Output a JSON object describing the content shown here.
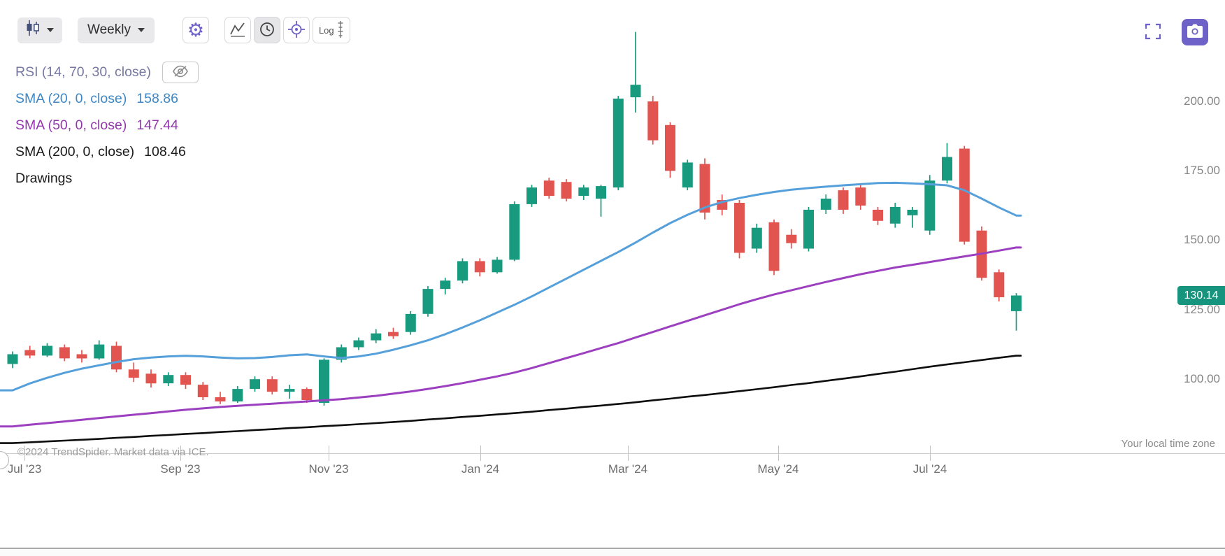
{
  "toolbar": {
    "chart_type_dropdown": {
      "selected": "candlestick"
    },
    "timeframe_dropdown": {
      "value": "Weekly"
    },
    "settings_button": {
      "icon": "gear-icon"
    },
    "indicators_button": {
      "icon": "line-chart-icon"
    },
    "time_button": {
      "icon": "clock-icon",
      "active": true
    },
    "crosshair_button": {
      "icon": "crosshair-icon"
    },
    "log_button": {
      "label": "Log"
    },
    "fullscreen_button": {
      "icon": "fullscreen-icon"
    },
    "camera_button": {
      "icon": "camera-icon"
    }
  },
  "legend": {
    "rsi": {
      "label": "RSI (14, 70, 30, close)",
      "hidden": true
    },
    "sma20": {
      "label": "SMA (20, 0, close)",
      "value": "158.86"
    },
    "sma50": {
      "label": "SMA (50, 0, close)",
      "value": "147.44"
    },
    "sma200": {
      "label": "SMA (200, 0, close)",
      "value": "108.46"
    },
    "drawings": {
      "label": "Drawings"
    }
  },
  "price_axis": {
    "labels": [
      "200.00",
      "175.00",
      "150.00",
      "125.00",
      "100.00"
    ],
    "last_price": "130.14"
  },
  "time_axis": {
    "labels": [
      "Jul '23",
      "Sep '23",
      "Nov '23",
      "Jan '24",
      "Mar '24",
      "May '24",
      "Jul '24"
    ]
  },
  "footer": {
    "copyright": "©2024 TrendSpider. Market data via ICE.",
    "timezone_note": "Your local time zone"
  },
  "colors": {
    "up": "#189a7f",
    "down": "#e25450",
    "sma20_line": "#55a0da",
    "sma20_text": "#3d87c6",
    "sma50_line": "#9c40c0",
    "sma50_text": "#9336ad",
    "sma200_line": "#0d0d0d",
    "sma200_text": "#1a1a1a",
    "rsi_text": "#7678a2",
    "accent": "#6e62c8",
    "last_price_bg": "#17947e"
  },
  "chart_data": {
    "type": "candlestick",
    "timeframe": "Weekly",
    "title": "Weekly candlestick chart with SMA 20/50/200 overlays",
    "price_axis_ticks": [
      200,
      175,
      150,
      125,
      100
    ],
    "last_close": 130.14,
    "x_labels": [
      "Jul '23",
      "Sep '23",
      "Nov '23",
      "Jan '24",
      "Mar '24",
      "May '24",
      "Jul '24"
    ],
    "candles_ohlc": [
      [
        105.5,
        110,
        104,
        109
      ],
      [
        110.5,
        112,
        107.5,
        108.5
      ],
      [
        108.5,
        113,
        108,
        112
      ],
      [
        111.5,
        112.5,
        106.5,
        107.5
      ],
      [
        109,
        110.5,
        106,
        107.5
      ],
      [
        107.5,
        114,
        107,
        112.5
      ],
      [
        112,
        113.5,
        102.5,
        103.5
      ],
      [
        103.5,
        106,
        99,
        100.5
      ],
      [
        102,
        103.5,
        97,
        98.5
      ],
      [
        98.5,
        102.5,
        97.5,
        101.5
      ],
      [
        101.5,
        102.5,
        96.5,
        98
      ],
      [
        98,
        99,
        92.5,
        93.5
      ],
      [
        93.5,
        95.5,
        91,
        92
      ],
      [
        92,
        97.5,
        91.5,
        96.5
      ],
      [
        96.5,
        101,
        95.5,
        100
      ],
      [
        100,
        101,
        94.5,
        95.5
      ],
      [
        95.5,
        98,
        93,
        96.5
      ],
      [
        96.5,
        97,
        91.5,
        92.5
      ],
      [
        91.5,
        107.5,
        90.5,
        107
      ],
      [
        107,
        112.5,
        106,
        111.5
      ],
      [
        111.5,
        115,
        110.5,
        114
      ],
      [
        114,
        118,
        113,
        116.5
      ],
      [
        117,
        118.5,
        114.5,
        115.5
      ],
      [
        117,
        124.5,
        116,
        123.5
      ],
      [
        123.5,
        133.5,
        122.5,
        132.5
      ],
      [
        132.5,
        136.5,
        130.5,
        135.5
      ],
      [
        135.5,
        143.5,
        134.5,
        142.5
      ],
      [
        142.5,
        143.5,
        137,
        138.5
      ],
      [
        138.5,
        144,
        138,
        143
      ],
      [
        143,
        164,
        142.5,
        163
      ],
      [
        163,
        170,
        162,
        169
      ],
      [
        171.5,
        172.5,
        165,
        166
      ],
      [
        171,
        172,
        164,
        165
      ],
      [
        166,
        170,
        164.5,
        169
      ],
      [
        165,
        170,
        158.5,
        169.5
      ],
      [
        169,
        202,
        168,
        201
      ],
      [
        201.5,
        225,
        196,
        206
      ],
      [
        200,
        202,
        184.5,
        186
      ],
      [
        191.5,
        192.5,
        172.5,
        175
      ],
      [
        169,
        179,
        168,
        178
      ],
      [
        177.5,
        179.5,
        157.5,
        160
      ],
      [
        164.5,
        166.5,
        159,
        161
      ],
      [
        163.5,
        164.5,
        143.5,
        145.5
      ],
      [
        147,
        156,
        145.5,
        154.5
      ],
      [
        156.5,
        157.5,
        137.5,
        139
      ],
      [
        152,
        154,
        147,
        149
      ],
      [
        147,
        162,
        146,
        161
      ],
      [
        161,
        166.5,
        159.5,
        165
      ],
      [
        168,
        169,
        159.5,
        161
      ],
      [
        169,
        170.5,
        161,
        162.5
      ],
      [
        161,
        162,
        155.5,
        157
      ],
      [
        156,
        163.5,
        154.5,
        162
      ],
      [
        159,
        162,
        154.5,
        161
      ],
      [
        153.5,
        173.5,
        152,
        171.5
      ],
      [
        171.5,
        185,
        170.5,
        180
      ],
      [
        183,
        184,
        148.5,
        149.5
      ],
      [
        153.5,
        155,
        135.5,
        136.5
      ],
      [
        138.5,
        139.5,
        128,
        129.5
      ],
      [
        124.5,
        131,
        117.5,
        130.14
      ]
    ],
    "overlays": [
      {
        "name": "SMA20",
        "period": 20,
        "current": 158.86,
        "values": [
          96.0,
          98.5,
          100.5,
          102.3,
          103.8,
          105.0,
          106.2,
          107.2,
          107.8,
          108.2,
          108.4,
          108.2,
          107.8,
          107.5,
          107.6,
          108.0,
          108.6,
          108.9,
          108.2,
          107.6,
          108.2,
          109.2,
          110.6,
          112.2,
          114.0,
          116.2,
          118.6,
          121.2,
          124.0,
          126.8,
          129.8,
          133.0,
          136.2,
          139.4,
          142.6,
          145.8,
          149.2,
          152.8,
          156.2,
          159.2,
          161.8,
          163.8,
          165.2,
          166.4,
          167.4,
          168.2,
          168.8,
          169.3,
          169.8,
          170.2,
          170.6,
          170.7,
          170.5,
          170.2,
          169.8,
          168.0,
          165.0,
          161.8,
          158.9
        ]
      },
      {
        "name": "SMA50",
        "period": 50,
        "current": 147.44,
        "values": [
          83.0,
          83.6,
          84.2,
          84.8,
          85.4,
          86.0,
          86.6,
          87.2,
          87.8,
          88.4,
          89.0,
          89.5,
          90.0,
          90.4,
          90.8,
          91.2,
          91.6,
          92.0,
          92.4,
          92.8,
          93.4,
          94.0,
          94.8,
          95.6,
          96.5,
          97.5,
          98.6,
          99.8,
          101.0,
          102.4,
          104.0,
          105.8,
          107.6,
          109.4,
          111.2,
          113.0,
          115.0,
          117.0,
          119.0,
          121.0,
          123.0,
          125.0,
          127.0,
          128.8,
          130.5,
          132.0,
          133.5,
          135.0,
          136.4,
          137.8,
          139.0,
          140.2,
          141.2,
          142.2,
          143.2,
          144.2,
          145.2,
          146.3,
          147.4
        ]
      },
      {
        "name": "SMA200",
        "period": 200,
        "current": 108.46,
        "values": [
          77.0,
          77.3,
          77.6,
          77.9,
          78.2,
          78.5,
          78.9,
          79.2,
          79.6,
          79.9,
          80.3,
          80.6,
          81.0,
          81.3,
          81.7,
          82.0,
          82.4,
          82.7,
          83.1,
          83.4,
          83.8,
          84.2,
          84.6,
          85.0,
          85.5,
          85.9,
          86.4,
          86.8,
          87.3,
          87.8,
          88.3,
          88.9,
          89.4,
          90.0,
          90.5,
          91.1,
          91.7,
          92.4,
          93.0,
          93.7,
          94.3,
          95.0,
          95.7,
          96.4,
          97.1,
          97.9,
          98.6,
          99.4,
          100.2,
          101.0,
          101.9,
          102.7,
          103.6,
          104.5,
          105.3,
          106.1,
          106.9,
          107.7,
          108.46
        ]
      }
    ]
  }
}
